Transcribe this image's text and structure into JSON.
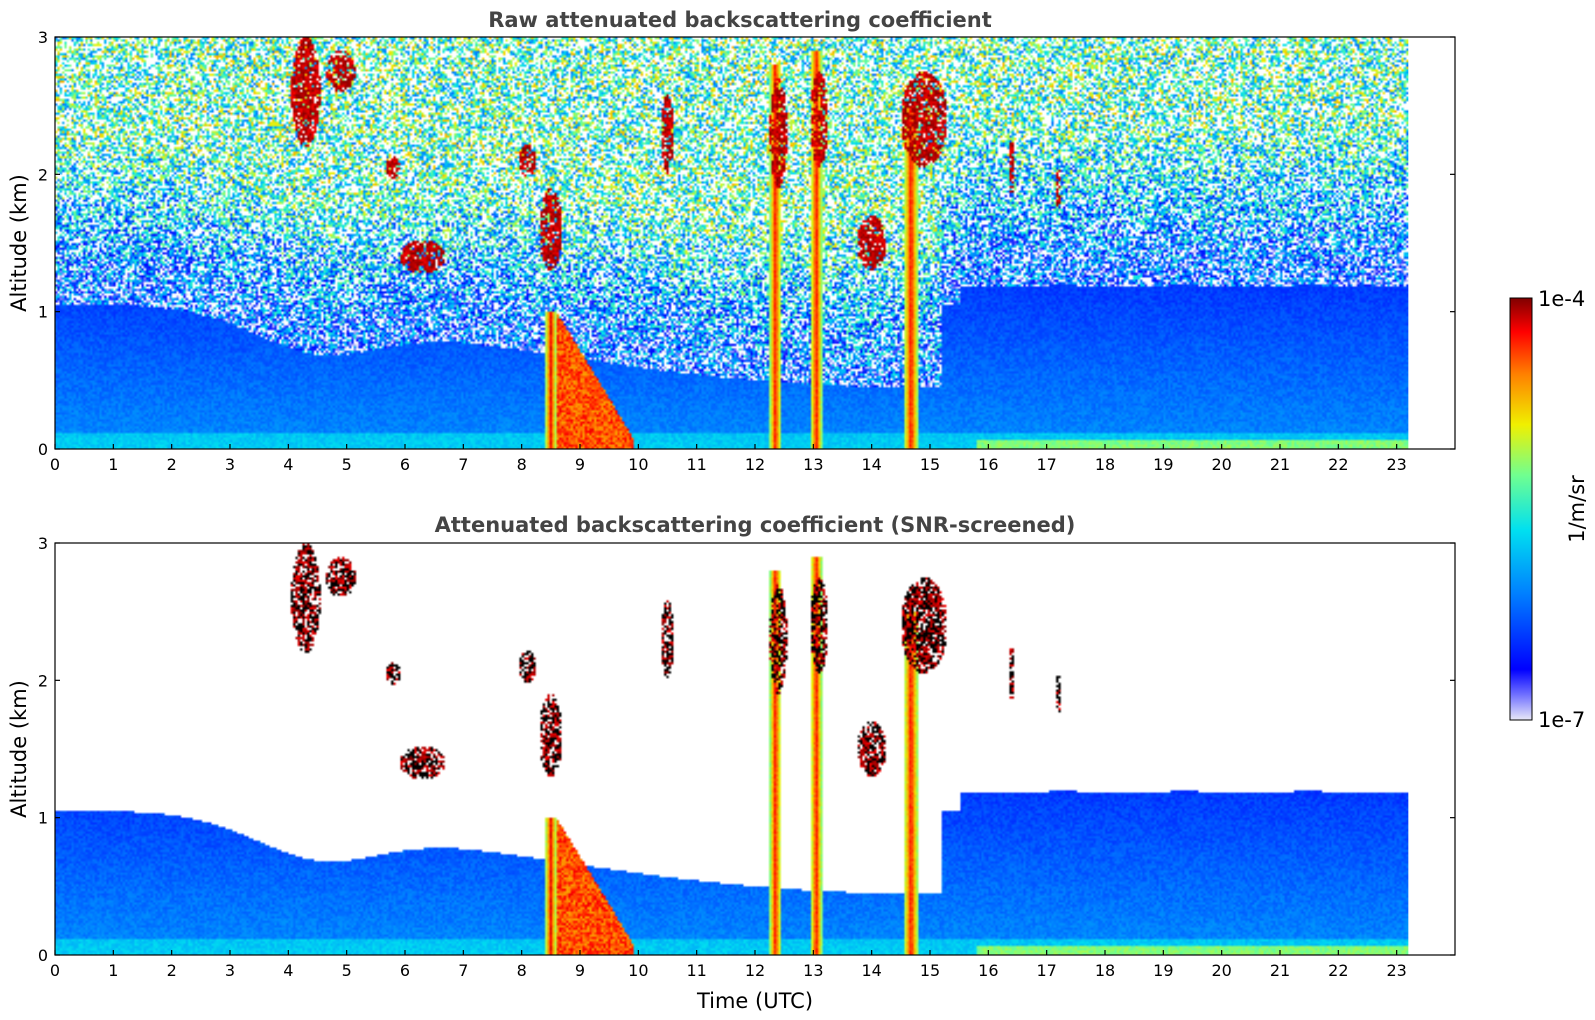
{
  "chart_data": [
    {
      "type": "heatmap",
      "title": "Raw attenuated backscattering coefficient",
      "xlabel": "",
      "ylabel": "Altitude (km)",
      "xlim": [
        0,
        24
      ],
      "ylim": [
        0,
        3
      ],
      "data_xrange": [
        0,
        23.2
      ],
      "xticks": [
        "0",
        "1",
        "2",
        "3",
        "4",
        "5",
        "6",
        "7",
        "8",
        "9",
        "10",
        "11",
        "12",
        "13",
        "14",
        "15",
        "16",
        "17",
        "18",
        "19",
        "20",
        "21",
        "22",
        "23"
      ],
      "yticks": [
        "0",
        "1",
        "2",
        "3"
      ],
      "screened": false,
      "features": [
        {
          "kind": "precip_shaft",
          "t_start": 8.4,
          "t_end": 8.6,
          "h_top": 1.0
        },
        {
          "kind": "precip_shaft",
          "t_start": 8.6,
          "t_end": 9.9,
          "h_top": 1.0
        },
        {
          "kind": "precip_shaft",
          "t_start": 12.25,
          "t_end": 12.45,
          "h_top": 2.8
        },
        {
          "kind": "precip_shaft",
          "t_start": 12.95,
          "t_end": 13.15,
          "h_top": 2.9
        },
        {
          "kind": "precip_shaft",
          "t_start": 14.55,
          "t_end": 14.8,
          "h_top": 2.5
        }
      ]
    },
    {
      "type": "heatmap",
      "title": "Attenuated backscattering coefficient (SNR-screened)",
      "xlabel": "Time (UTC)",
      "ylabel": "Altitude (km)",
      "xlim": [
        0,
        24
      ],
      "ylim": [
        0,
        3
      ],
      "data_xrange": [
        0,
        23.2
      ],
      "xticks": [
        "0",
        "1",
        "2",
        "3",
        "4",
        "5",
        "6",
        "7",
        "8",
        "9",
        "10",
        "11",
        "12",
        "13",
        "14",
        "15",
        "16",
        "17",
        "18",
        "19",
        "20",
        "21",
        "22",
        "23"
      ],
      "yticks": [
        "0",
        "1",
        "2",
        "3"
      ],
      "screened": true,
      "features": []
    }
  ],
  "colorbar": {
    "label": "1/m/sr",
    "max_label": "1e-4",
    "min_label": "1e-7",
    "scale": "log",
    "colormap": "jet"
  }
}
